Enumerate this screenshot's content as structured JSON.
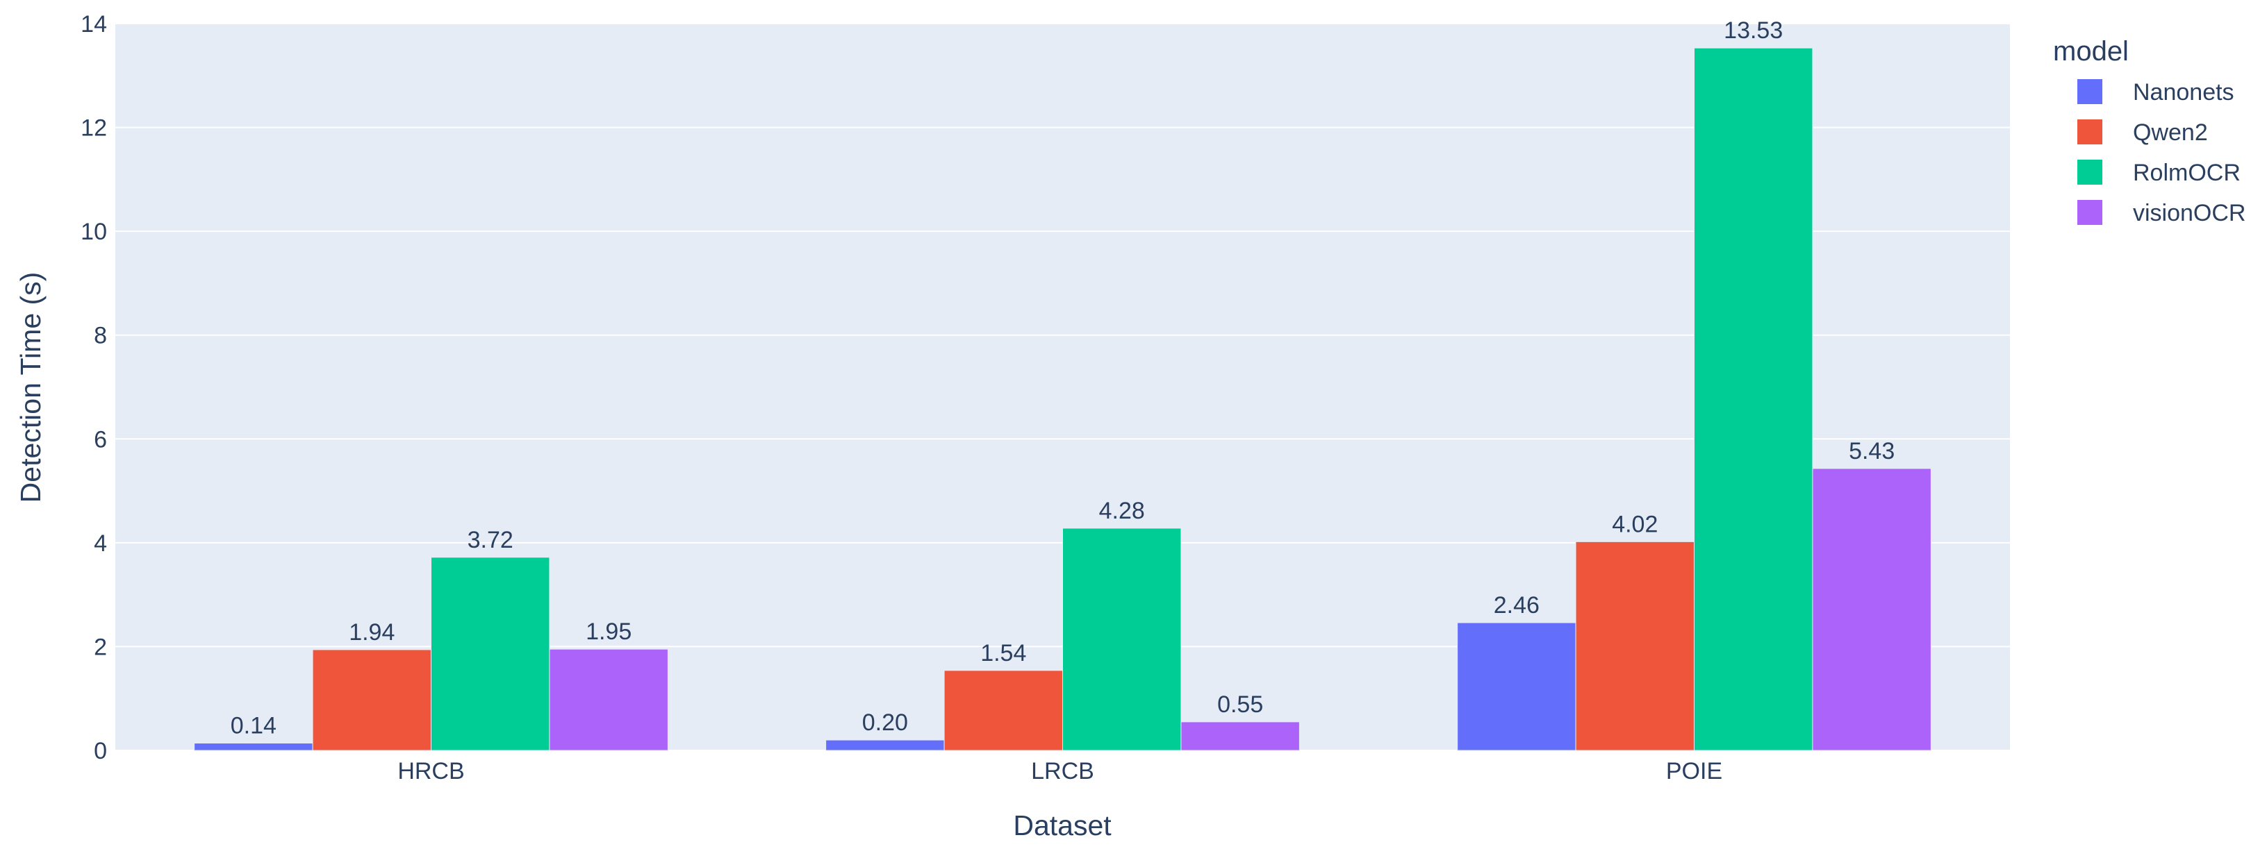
{
  "chart_data": {
    "type": "bar",
    "xlabel": "Dataset",
    "ylabel": "Detection Time (s)",
    "categories": [
      "HRCB",
      "LRCB",
      "POIE"
    ],
    "ylim": [
      0,
      14
    ],
    "yticks": [
      0,
      2,
      4,
      6,
      8,
      10,
      12,
      14
    ],
    "legend_title": "model",
    "legend_position": "top-right",
    "grid": true,
    "series": [
      {
        "name": "Nanonets",
        "color": "#636efa",
        "values": [
          0.14,
          0.2,
          2.46
        ],
        "labels": [
          "0.14",
          "0.20",
          "2.46"
        ]
      },
      {
        "name": "Qwen2",
        "color": "#ef553b",
        "values": [
          1.94,
          1.54,
          4.02
        ],
        "labels": [
          "1.94",
          "1.54",
          "4.02"
        ]
      },
      {
        "name": "RolmOCR",
        "color": "#00cc96",
        "values": [
          3.72,
          4.28,
          13.53
        ],
        "labels": [
          "3.72",
          "4.28",
          "13.53"
        ]
      },
      {
        "name": "visionOCR",
        "color": "#ab63fa",
        "values": [
          1.95,
          0.55,
          5.43
        ],
        "labels": [
          "1.95",
          "0.55",
          "5.43"
        ]
      }
    ]
  }
}
